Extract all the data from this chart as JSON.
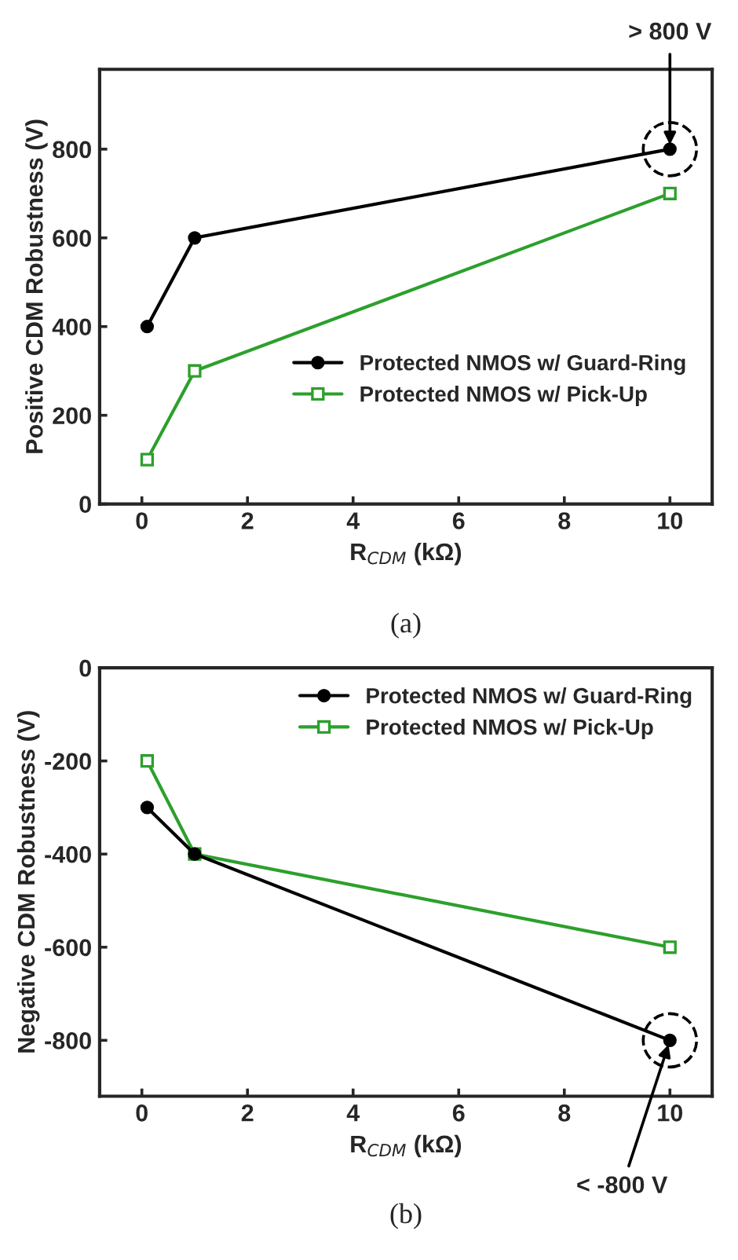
{
  "chart_data": [
    {
      "type": "line",
      "xlabel": "R$_{CDM}$ (kΩ)",
      "ylabel": "Positive CDM Robustness (V)",
      "xlim": [
        -0.8,
        10.8
      ],
      "xticks": [
        0,
        2,
        4,
        6,
        8,
        10
      ],
      "ylim": [
        0,
        980
      ],
      "yticks": [
        0,
        200,
        400,
        600,
        800
      ],
      "legend": "bottom right",
      "grid": false,
      "series": [
        {
          "name": "Protected NMOS w/ Guard-Ring",
          "color": "#000000",
          "marker": "circle",
          "x": [
            0.1,
            1,
            10
          ],
          "values": [
            400,
            600,
            800
          ]
        },
        {
          "name": "Protected NMOS w/ Pick-Up",
          "color": "#2ca02c",
          "marker": "square",
          "x": [
            0.1,
            1,
            10
          ],
          "values": [
            100,
            300,
            700
          ]
        }
      ],
      "annotations": [
        {
          "text": "> 800 V",
          "x": 10,
          "y": 800
        },
        "(a)"
      ]
    },
    {
      "type": "line",
      "xlabel": "R$_{CDM}$ (kΩ)",
      "ylabel": "Negative CDM Robustness (V)",
      "xlim": [
        -0.8,
        10.8
      ],
      "xticks": [
        0,
        2,
        4,
        6,
        8,
        10
      ],
      "ylim": [
        -920,
        0
      ],
      "yticks": [
        -800,
        -600,
        -400,
        -200,
        0
      ],
      "legend": "top right",
      "grid": false,
      "series": [
        {
          "name": "Protected NMOS w/ Guard-Ring",
          "color": "#000000",
          "marker": "circle",
          "x": [
            0.1,
            1,
            10
          ],
          "values": [
            -300,
            -400,
            -800
          ]
        },
        {
          "name": "Protected NMOS w/ Pick-Up",
          "color": "#2ca02c",
          "marker": "square",
          "x": [
            0.1,
            1,
            10
          ],
          "values": [
            -200,
            -400,
            -600
          ]
        }
      ],
      "annotations": [
        {
          "text": "< -800 V",
          "x": 10,
          "y": -800
        },
        "(b)"
      ]
    }
  ]
}
